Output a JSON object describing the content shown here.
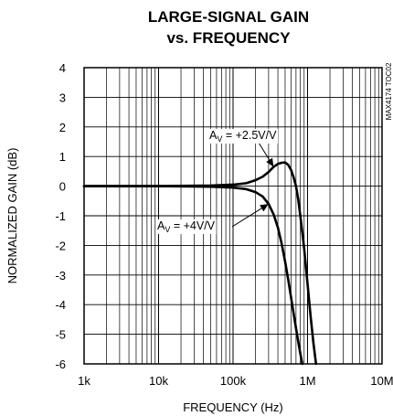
{
  "chart_data": {
    "type": "line",
    "title": [
      "LARGE-SIGNAL GAIN",
      "vs. FREQUENCY"
    ],
    "xlabel": "FREQUENCY (Hz)",
    "ylabel": "NORMALIZED GAIN (dB)",
    "xscale": "log",
    "xlim": [
      1000,
      10000000
    ],
    "ylim": [
      -6,
      4
    ],
    "x_ticks": [
      {
        "value": 1000,
        "label": "1k"
      },
      {
        "value": 10000,
        "label": "10k"
      },
      {
        "value": 100000,
        "label": "100k"
      },
      {
        "value": 1000000,
        "label": "1M"
      },
      {
        "value": 10000000,
        "label": "10M"
      }
    ],
    "y_ticks": [
      {
        "value": 4,
        "label": "4"
      },
      {
        "value": 3,
        "label": "3"
      },
      {
        "value": 2,
        "label": "2"
      },
      {
        "value": 1,
        "label": "1"
      },
      {
        "value": 0,
        "label": "0"
      },
      {
        "value": -1,
        "label": "-1"
      },
      {
        "value": -2,
        "label": "-2"
      },
      {
        "value": -3,
        "label": "-3"
      },
      {
        "value": -4,
        "label": "-4"
      },
      {
        "value": -5,
        "label": "-5"
      },
      {
        "value": -6,
        "label": "-6"
      }
    ],
    "grid": true,
    "code_label": "MAX4174 TOC02",
    "series": [
      {
        "label_main": "A",
        "label_sub": "V",
        "label_rest": " = +2.5V/V",
        "x": [
          1000,
          10000,
          50000,
          100000,
          150000,
          200000,
          250000,
          300000,
          350000,
          400000,
          450000,
          500000,
          550000,
          600000,
          650000,
          700000,
          750000,
          800000,
          900000,
          1000000,
          1100000,
          1200000,
          1300000
        ],
        "y": [
          0,
          0,
          0.02,
          0.05,
          0.1,
          0.2,
          0.32,
          0.48,
          0.65,
          0.75,
          0.79,
          0.8,
          0.72,
          0.55,
          0.3,
          0,
          -0.45,
          -1.0,
          -2.1,
          -3.3,
          -4.4,
          -5.3,
          -6.0
        ]
      },
      {
        "label_main": "A",
        "label_sub": "V",
        "label_rest": " = +4V/V",
        "x": [
          1000,
          10000,
          50000,
          100000,
          150000,
          200000,
          250000,
          300000,
          350000,
          400000,
          450000,
          500000,
          550000,
          600000,
          650000,
          700000,
          750000,
          800000,
          850000
        ],
        "y": [
          0,
          0,
          -0.02,
          -0.05,
          -0.1,
          -0.2,
          -0.35,
          -0.6,
          -0.95,
          -1.4,
          -1.95,
          -2.55,
          -3.15,
          -3.75,
          -4.3,
          -4.8,
          -5.25,
          -5.65,
          -6.0
        ]
      }
    ]
  }
}
